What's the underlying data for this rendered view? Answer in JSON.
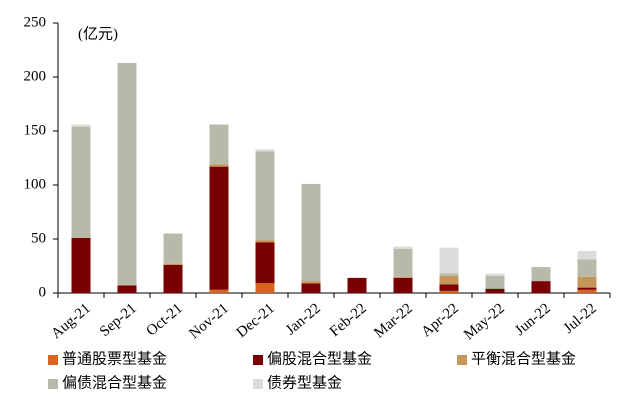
{
  "chart_data": {
    "type": "stacked_bar",
    "unit_label": "(亿元)",
    "categories": [
      "Aug-21",
      "Sep-21",
      "Oct-21",
      "Nov-21",
      "Dec-21",
      "Jan-22",
      "Feb-22",
      "Mar-22",
      "Apr-22",
      "May-22",
      "Jun-22",
      "Jul-22"
    ],
    "series": [
      {
        "name": "普通股票型基金",
        "color": "#d9621f",
        "values": [
          0,
          0,
          0,
          3,
          9,
          0,
          0,
          0,
          2,
          0,
          0,
          3
        ]
      },
      {
        "name": "偏股混合型基金",
        "color": "#780000",
        "values": [
          51,
          7,
          26,
          114,
          38,
          9,
          14,
          14,
          6,
          4,
          11,
          2
        ]
      },
      {
        "name": "平衡混合型基金",
        "color": "#c4965a",
        "values": [
          0,
          0,
          1,
          2,
          2,
          2,
          0,
          1,
          8,
          0,
          0,
          10
        ]
      },
      {
        "name": "偏债混合型基金",
        "color": "#b9b9a9",
        "values": [
          103,
          206,
          28,
          37,
          82,
          90,
          0,
          26,
          2,
          12,
          13,
          16
        ]
      },
      {
        "name": "债券型基金",
        "color": "#dcdcdc",
        "values": [
          2,
          0,
          0,
          0,
          2,
          0,
          0,
          2,
          24,
          2,
          0,
          8
        ]
      }
    ],
    "ylim": [
      0,
      250
    ],
    "yticks": [
      0,
      50,
      100,
      150,
      200,
      250
    ]
  }
}
